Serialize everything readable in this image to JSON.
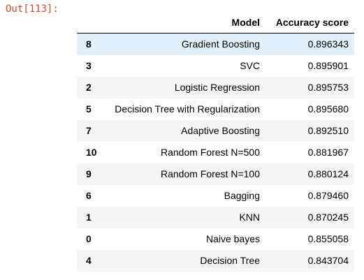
{
  "output": {
    "prompt": "Out[113]:"
  },
  "table": {
    "index_header": "",
    "columns": [
      "Model",
      "Accuracy score"
    ],
    "rows": [
      {
        "index": "8",
        "model": "Gradient Boosting",
        "accuracy": "0.896343"
      },
      {
        "index": "3",
        "model": "SVC",
        "accuracy": "0.895901"
      },
      {
        "index": "2",
        "model": "Logistic Regression",
        "accuracy": "0.895753"
      },
      {
        "index": "5",
        "model": "Decision Tree with Regularization",
        "accuracy": "0.895680"
      },
      {
        "index": "7",
        "model": "Adaptive Boosting",
        "accuracy": "0.892510"
      },
      {
        "index": "10",
        "model": "Random Forest N=500",
        "accuracy": "0.881967"
      },
      {
        "index": "9",
        "model": "Random Forest N=100",
        "accuracy": "0.880124"
      },
      {
        "index": "6",
        "model": "Bagging",
        "accuracy": "0.879460"
      },
      {
        "index": "1",
        "model": "KNN",
        "accuracy": "0.870245"
      },
      {
        "index": "0",
        "model": "Naive bayes",
        "accuracy": "0.855058"
      },
      {
        "index": "4",
        "model": "Decision Tree",
        "accuracy": "0.843704"
      }
    ],
    "hovered_row": 0
  },
  "colors": {
    "prompt": "#d84a2b",
    "stripe": "#f5f5f5",
    "hover": "#e1f0fb"
  }
}
